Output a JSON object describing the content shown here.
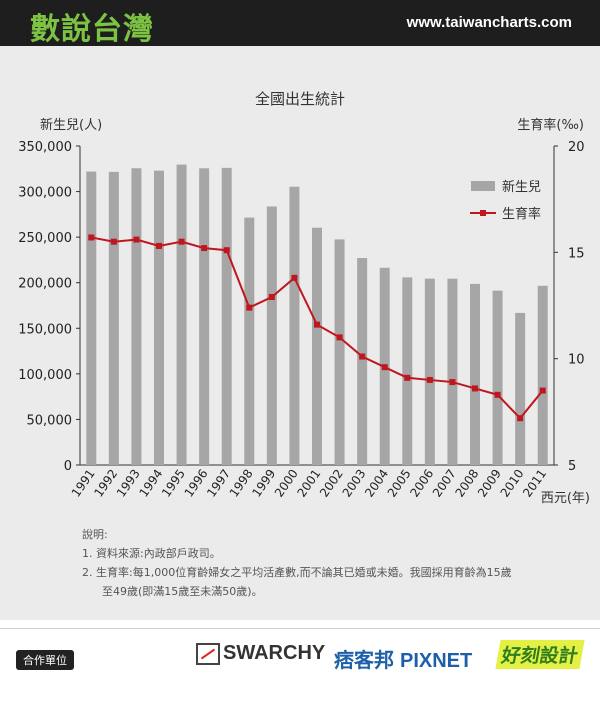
{
  "header": {
    "brand": "數說台灣",
    "site": "www.taiwancharts.com"
  },
  "chart_data": {
    "type": "bar+line",
    "title": "全國出生統計",
    "ylabel_left": "新生兒(人)",
    "ylabel_right": "生育率(‰)",
    "xlabel": "西元(年)",
    "categories": [
      "1991",
      "1992",
      "1993",
      "1994",
      "1995",
      "1996",
      "1997",
      "1998",
      "1999",
      "2000",
      "2001",
      "2002",
      "2003",
      "2004",
      "2005",
      "2006",
      "2007",
      "2008",
      "2009",
      "2010",
      "2011"
    ],
    "left_axis": {
      "min": 0,
      "max": 350000,
      "ticks": [
        0,
        50000,
        100000,
        150000,
        200000,
        250000,
        300000,
        350000
      ],
      "tick_labels": [
        "0",
        "50,000",
        "100,000",
        "150,000",
        "200,000",
        "250,000",
        "300,000",
        "350,000"
      ]
    },
    "right_axis": {
      "min": 5,
      "max": 20,
      "ticks": [
        5,
        10,
        15,
        20
      ],
      "tick_labels": [
        "5",
        "10",
        "15",
        "20"
      ]
    },
    "series": [
      {
        "name": "新生兒",
        "kind": "bar",
        "color": "#a6a6a6",
        "values": [
          321932,
          321632,
          325613,
          322938,
          329581,
          325545,
          326002,
          271450,
          283661,
          305312,
          260354,
          247530,
          227070,
          216419,
          205854,
          204459,
          204414,
          198733,
          191310,
          166886,
          196627
        ]
      },
      {
        "name": "生育率",
        "kind": "line",
        "color": "#c0161e",
        "values": [
          15.7,
          15.5,
          15.6,
          15.3,
          15.5,
          15.2,
          15.1,
          12.4,
          12.9,
          13.8,
          11.6,
          11.0,
          10.1,
          9.6,
          9.1,
          9.0,
          8.9,
          8.6,
          8.3,
          7.2,
          8.5
        ]
      }
    ],
    "legend_position": "right, upper area"
  },
  "notes": {
    "heading": "說明:",
    "line1": "1. 資料來源:內政部戶政司。",
    "line2": "2. 生育率:每1,000位育齡婦女之平均活產數,而不論其已婚或未婚。我國採用育齡為15歲",
    "line3": "至49歲(即滿15歲至未滿50歲)。"
  },
  "footer": {
    "partner_label": "合作單位",
    "partner1": "SWARCHY",
    "partner2_cn": "痞客邦",
    "partner2": "PIXNET",
    "partner3": "好刻設計"
  },
  "colors": {
    "bar": "#a6a6a6",
    "line": "#c0161e",
    "panel": "#ebebeb",
    "header": "#1e1e1e"
  }
}
